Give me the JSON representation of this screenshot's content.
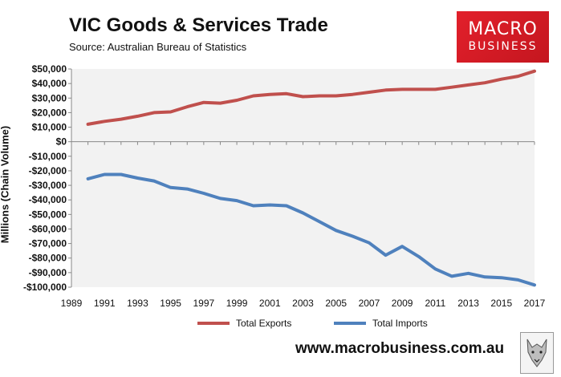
{
  "header": {
    "title": "VIC Goods & Services Trade",
    "source": "Source:  Australian Bureau of Statistics"
  },
  "logo": {
    "line1": "MACRO",
    "line2": "BUSINESS",
    "color": "#d71f27"
  },
  "footer": {
    "website": "www.macrobusiness.com.au",
    "icon": "wolf-logo-icon"
  },
  "chart_data": {
    "type": "line",
    "title": "VIC Goods & Services Trade",
    "ylabel": "Millions (Chain Volume)",
    "xlabel": "",
    "xlim": [
      1989,
      2017
    ],
    "ylim": [
      -100000,
      50000
    ],
    "yticks": [
      50000,
      40000,
      30000,
      20000,
      10000,
      0,
      -10000,
      -20000,
      -30000,
      -40000,
      -50000,
      -60000,
      -70000,
      -80000,
      -90000,
      -100000
    ],
    "ytick_labels": [
      "$50,000",
      "$40,000",
      "$30,000",
      "$20,000",
      "$10,000",
      "$0",
      "-$10,000",
      "-$20,000",
      "-$30,000",
      "-$40,000",
      "-$50,000",
      "-$60,000",
      "-$70,000",
      "-$80,000",
      "-$90,000",
      "-$100,000"
    ],
    "xticks": [
      "1989",
      "1991",
      "1993",
      "1995",
      "1997",
      "1999",
      "2001",
      "2003",
      "2005",
      "2007",
      "2009",
      "2011",
      "2013",
      "2015",
      "2017"
    ],
    "legend_position": "bottom",
    "grid": false,
    "series": [
      {
        "name": "Total Exports",
        "color": "#c0504d",
        "x": [
          1990,
          1991,
          1992,
          1993,
          1994,
          1995,
          1996,
          1997,
          1998,
          1999,
          2000,
          2001,
          2002,
          2003,
          2004,
          2005,
          2006,
          2007,
          2008,
          2009,
          2010,
          2011,
          2012,
          2013,
          2014,
          2015,
          2016,
          2017
        ],
        "values": [
          12000,
          14000,
          15500,
          17500,
          20000,
          20500,
          24000,
          27000,
          26500,
          28500,
          31500,
          32500,
          33000,
          31000,
          31500,
          31500,
          32500,
          34000,
          35500,
          36000,
          36000,
          36000,
          37500,
          39000,
          40500,
          43000,
          45000,
          48500
        ]
      },
      {
        "name": "Total Imports",
        "color": "#4f81bd",
        "x": [
          1990,
          1991,
          1992,
          1993,
          1994,
          1995,
          1996,
          1997,
          1998,
          1999,
          2000,
          2001,
          2002,
          2003,
          2004,
          2005,
          2006,
          2007,
          2008,
          2009,
          2010,
          2011,
          2012,
          2013,
          2014,
          2015,
          2016,
          2017
        ],
        "values": [
          -25500,
          -22500,
          -22500,
          -25000,
          -27000,
          -31500,
          -32500,
          -35500,
          -39000,
          -40500,
          -44000,
          -43500,
          -44000,
          -49000,
          -55000,
          -61000,
          -65000,
          -69500,
          -78000,
          -72000,
          -79000,
          -87500,
          -92500,
          -90500,
          -93000,
          -93500,
          -95000,
          -98500
        ]
      }
    ]
  }
}
